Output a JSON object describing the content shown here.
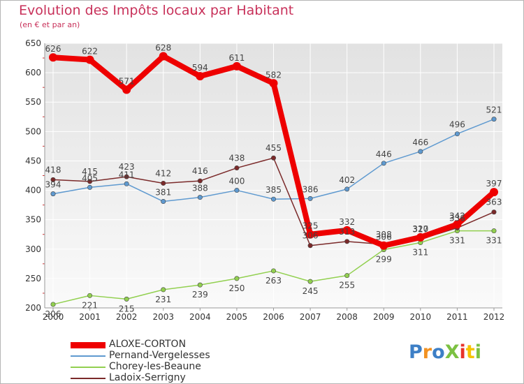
{
  "header": {
    "title": "Evolution des Impôts locaux par Habitant",
    "subtitle": "(en € et par an)"
  },
  "logo": {
    "text": "ProXiti"
  },
  "chart_data": {
    "type": "line",
    "title": "Evolution des Impôts locaux par Habitant",
    "subtitle": "(en € et par an)",
    "xlabel": "",
    "ylabel": "",
    "ylim": [
      200,
      650
    ],
    "yticks": [
      200,
      250,
      300,
      350,
      400,
      450,
      500,
      550,
      600,
      650
    ],
    "grid": true,
    "legend_position": "bottom-left",
    "x": [
      "2000",
      "2001",
      "2002",
      "2003",
      "2004",
      "2005",
      "2006",
      "2007",
      "2008",
      "2009",
      "2010",
      "2011",
      "2012"
    ],
    "series": [
      {
        "name": "ALOXE-CORTON",
        "color": "#ee0000",
        "values": [
          626,
          622,
          571,
          628,
          594,
          611,
          582,
          325,
          332,
          306,
          320,
          342,
          397
        ]
      },
      {
        "name": "Pernand-Vergelesses",
        "color": "#5f9ad0",
        "values": [
          394,
          405,
          411,
          381,
          388,
          400,
          385,
          386,
          402,
          446,
          466,
          496,
          521
        ]
      },
      {
        "name": "Chorey-les-Beaune",
        "color": "#92d050",
        "values": [
          206,
          221,
          215,
          231,
          239,
          250,
          263,
          245,
          255,
          299,
          311,
          331,
          331
        ]
      },
      {
        "name": "Ladoix-Serrigny",
        "color": "#7b2a2a",
        "values": [
          418,
          415,
          423,
          412,
          416,
          438,
          455,
          306,
          313,
          308,
          317,
          336,
          363
        ]
      }
    ]
  }
}
